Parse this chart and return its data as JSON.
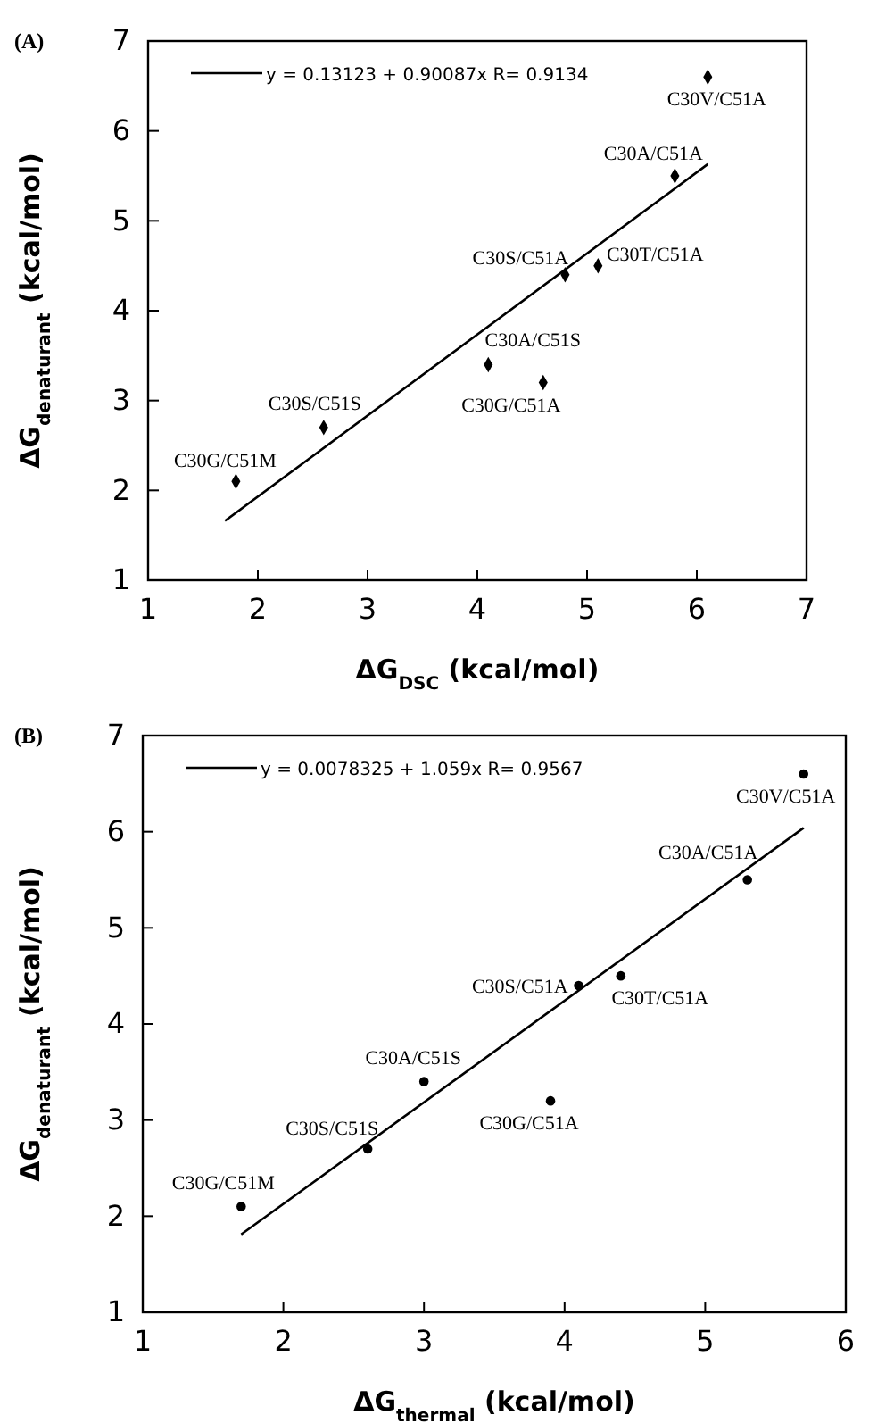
{
  "chart_data": [
    {
      "type": "scatter",
      "title": "(A)",
      "xlabel": "ΔG$_{DSC}$ (kcal/mol)",
      "ylabel": "ΔG$_{denaturant}$ (kcal/mol)",
      "xlim": [
        1,
        7
      ],
      "xticks": [
        1,
        2,
        3,
        4,
        5,
        6,
        7
      ],
      "ylim": [
        1,
        7
      ],
      "yticks": [
        1,
        2,
        3,
        4,
        5,
        6,
        7
      ],
      "grid": false,
      "legend": "top left",
      "series": [
        {
          "type": "scatter",
          "color": "#000000",
          "marker": "diamond",
          "x": [
            1.8,
            2.6,
            4.1,
            4.6,
            4.8,
            5.1,
            5.8,
            6.1
          ],
          "values": [
            2.1,
            2.7,
            3.4,
            3.2,
            4.4,
            4.5,
            5.5,
            6.6
          ]
        },
        {
          "type": "line",
          "name": "y = 0.13123 + 0.90087x R= 0.9134",
          "color": "#000000",
          "marker": "none",
          "line_style": "solid",
          "x": [
            1.7,
            6.1
          ],
          "values": [
            1.66,
            5.63
          ]
        }
      ],
      "annotations": [
        {
          "text": "C30G/C51M",
          "x": 1.8,
          "y": 2.1
        },
        {
          "text": "C30S/C51S",
          "x": 2.6,
          "y": 2.7
        },
        {
          "text": "C30A/C51S",
          "x": 4.1,
          "y": 3.4
        },
        {
          "text": "C30G/C51A",
          "x": 4.6,
          "y": 3.2
        },
        {
          "text": "C30S/C51A",
          "x": 4.8,
          "y": 4.4
        },
        {
          "text": "C30T/C51A",
          "x": 5.1,
          "y": 4.5
        },
        {
          "text": "C30A/C51A",
          "x": 5.8,
          "y": 5.5
        },
        {
          "text": "C30V/C51A",
          "x": 6.1,
          "y": 6.6
        }
      ]
    },
    {
      "type": "scatter",
      "title": "(B)",
      "xlabel": "ΔG$_{thermal}$ (kcal/mol)",
      "ylabel": "ΔG$_{denaturant}$ (kcal/mol)",
      "xlim": [
        1,
        6
      ],
      "xticks": [
        1,
        2,
        3,
        4,
        5,
        6
      ],
      "ylim": [
        1,
        7
      ],
      "yticks": [
        1,
        2,
        3,
        4,
        5,
        6,
        7
      ],
      "grid": false,
      "legend": "top left",
      "series": [
        {
          "type": "scatter",
          "color": "#000000",
          "marker": "circle",
          "x": [
            1.7,
            2.6,
            3.0,
            3.9,
            4.1,
            4.4,
            5.3,
            5.7
          ],
          "values": [
            2.1,
            2.7,
            3.4,
            3.2,
            4.4,
            4.5,
            5.5,
            6.6
          ]
        },
        {
          "type": "line",
          "name": "y = 0.0078325 + 1.059x R= 0.9567",
          "color": "#000000",
          "marker": "none",
          "line_style": "solid",
          "x": [
            1.7,
            5.7
          ],
          "values": [
            1.81,
            6.04
          ]
        }
      ],
      "annotations": [
        {
          "text": "C30G/C51M",
          "x": 1.7,
          "y": 2.1
        },
        {
          "text": "C30S/C51S",
          "x": 2.6,
          "y": 2.7
        },
        {
          "text": "C30A/C51S",
          "x": 3.0,
          "y": 3.4
        },
        {
          "text": "C30G/C51A",
          "x": 3.9,
          "y": 3.2
        },
        {
          "text": "C30S/C51A",
          "x": 4.1,
          "y": 4.4
        },
        {
          "text": "C30T/C51A",
          "x": 4.4,
          "y": 4.5
        },
        {
          "text": "C30A/C51A",
          "x": 5.3,
          "y": 5.5
        },
        {
          "text": "C30V/C51A",
          "x": 5.7,
          "y": 6.6
        }
      ]
    }
  ]
}
